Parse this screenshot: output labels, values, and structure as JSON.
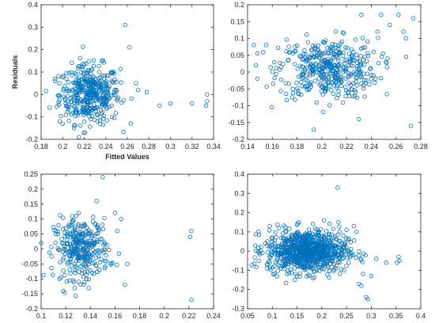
{
  "theme": {
    "marker_color": "#0072BD"
  },
  "chart_data": [
    {
      "type": "scatter",
      "xlabel": "Fitted Values",
      "ylabel": "Residuals",
      "xlim": [
        0.18,
        0.34
      ],
      "ylim": [
        -0.2,
        0.4
      ],
      "xticks": [
        0.18,
        0.2,
        0.22,
        0.24,
        0.26,
        0.28,
        0.3,
        0.32,
        0.34
      ],
      "yticks": [
        -0.2,
        -0.1,
        0,
        0.1,
        0.2,
        0.3,
        0.4
      ],
      "xtick_labels": [
        "0.18",
        "0.2",
        "0.22",
        "0.24",
        "0.26",
        "0.28",
        "0.3",
        "0.32",
        "0.34"
      ],
      "ytick_labels": [
        "-0.2",
        "-0.1",
        "0",
        "0.1",
        "0.2",
        "0.3",
        "0.4"
      ],
      "cluster": {
        "x_mean": 0.225,
        "x_sd": 0.014,
        "y_mean": 0.0,
        "y_sd": 0.065,
        "count": 420
      },
      "points": [
        [
          0.258,
          0.31
        ],
        [
          0.32,
          -0.04
        ],
        [
          0.334,
          -0.03
        ],
        [
          0.334,
          0.0
        ],
        [
          0.333,
          -0.05
        ],
        [
          0.3,
          -0.04
        ],
        [
          0.29,
          -0.05
        ],
        [
          0.27,
          0.02
        ],
        [
          0.278,
          0.01
        ],
        [
          0.193,
          0.06
        ],
        [
          0.197,
          0.05
        ],
        [
          0.2,
          -0.13
        ],
        [
          0.215,
          -0.19
        ],
        [
          0.262,
          0.21
        ],
        [
          0.268,
          0.05
        ]
      ]
    },
    {
      "type": "scatter",
      "xlabel": "",
      "ylabel": "",
      "xlim": [
        0.14,
        0.28
      ],
      "ylim": [
        -0.2,
        0.2
      ],
      "xticks": [
        0.14,
        0.16,
        0.18,
        0.2,
        0.22,
        0.24,
        0.26,
        0.28
      ],
      "yticks": [
        -0.2,
        -0.15,
        -0.1,
        -0.05,
        0,
        0.05,
        0.1,
        0.15,
        0.2
      ],
      "xtick_labels": [
        "0.14",
        "0.16",
        "0.18",
        "0.2",
        "0.22",
        "0.24",
        "0.26",
        "0.28"
      ],
      "ytick_labels": [
        "-0.2",
        "-0.15",
        "-0.1",
        "-0.05",
        "0",
        "0.05",
        "0.1",
        "0.15",
        "0.2"
      ],
      "cluster": {
        "x_mean": 0.205,
        "x_sd": 0.02,
        "y_mean": 0.01,
        "y_sd": 0.045,
        "count": 430
      },
      "points": [
        [
          0.145,
          0.08
        ],
        [
          0.148,
          -0.02
        ],
        [
          0.155,
          0.08
        ],
        [
          0.232,
          0.17
        ],
        [
          0.248,
          0.17
        ],
        [
          0.262,
          0.17
        ],
        [
          0.274,
          0.16
        ],
        [
          0.272,
          -0.16
        ],
        [
          0.268,
          0.1
        ],
        [
          0.266,
          0.12
        ],
        [
          0.208,
          -0.21
        ],
        [
          0.23,
          -0.14
        ],
        [
          0.255,
          0.14
        ],
        [
          0.245,
          0.12
        ]
      ]
    },
    {
      "type": "scatter",
      "xlabel": "",
      "ylabel": "",
      "xlim": [
        0.1,
        0.24
      ],
      "ylim": [
        -0.2,
        0.25
      ],
      "xticks": [
        0.1,
        0.12,
        0.14,
        0.16,
        0.18,
        0.2,
        0.22,
        0.24
      ],
      "yticks": [
        -0.2,
        -0.15,
        -0.1,
        -0.05,
        0,
        0.05,
        0.1,
        0.15,
        0.2,
        0.25
      ],
      "xtick_labels": [
        "0.1",
        "0.12",
        "0.14",
        "0.16",
        "0.18",
        "0.2",
        "0.22",
        "0.24"
      ],
      "ytick_labels": [
        "-0.2",
        "-0.15",
        "-0.1",
        "-0.05",
        "0",
        "0.05",
        "0.1",
        "0.15",
        "0.2",
        "0.25"
      ],
      "cluster": {
        "x_mean": 0.133,
        "x_sd": 0.011,
        "y_mean": 0.0,
        "y_sd": 0.05,
        "count": 330
      },
      "points": [
        [
          0.15,
          0.24
        ],
        [
          0.145,
          0.16
        ],
        [
          0.222,
          0.06
        ],
        [
          0.221,
          0.04
        ],
        [
          0.222,
          -0.17
        ],
        [
          0.168,
          -0.12
        ],
        [
          0.17,
          -0.05
        ],
        [
          0.165,
          0.1
        ],
        [
          0.16,
          0.12
        ],
        [
          0.115,
          -0.1
        ],
        [
          0.112,
          0.05
        ]
      ]
    },
    {
      "type": "scatter",
      "xlabel": "",
      "ylabel": "",
      "xlim": [
        0.05,
        0.4
      ],
      "ylim": [
        -0.3,
        0.4
      ],
      "xticks": [
        0.05,
        0.1,
        0.15,
        0.2,
        0.25,
        0.3,
        0.35,
        0.4
      ],
      "yticks": [
        -0.3,
        -0.2,
        -0.1,
        0,
        0.1,
        0.2,
        0.3,
        0.4
      ],
      "xtick_labels": [
        "0.05",
        "0.1",
        "0.15",
        "0.2",
        "0.25",
        "0.3",
        "0.35",
        "0.4"
      ],
      "ytick_labels": [
        "-0.3",
        "-0.2",
        "-0.1",
        "0",
        "0.1",
        "0.2",
        "0.3",
        "0.4"
      ],
      "cluster": {
        "x_mean": 0.17,
        "x_sd": 0.04,
        "y_mean": 0.0,
        "y_sd": 0.055,
        "count": 900
      },
      "points": [
        [
          0.232,
          0.33
        ],
        [
          0.29,
          -0.24
        ],
        [
          0.293,
          -0.25
        ],
        [
          0.3,
          -0.13
        ],
        [
          0.355,
          -0.03
        ],
        [
          0.357,
          -0.05
        ],
        [
          0.352,
          -0.06
        ],
        [
          0.33,
          -0.06
        ],
        [
          0.31,
          -0.04
        ],
        [
          0.275,
          -0.17
        ],
        [
          0.28,
          -0.18
        ],
        [
          0.27,
          0.1
        ],
        [
          0.265,
          0.13
        ],
        [
          0.095,
          0.13
        ],
        [
          0.09,
          0.05
        ]
      ]
    }
  ]
}
